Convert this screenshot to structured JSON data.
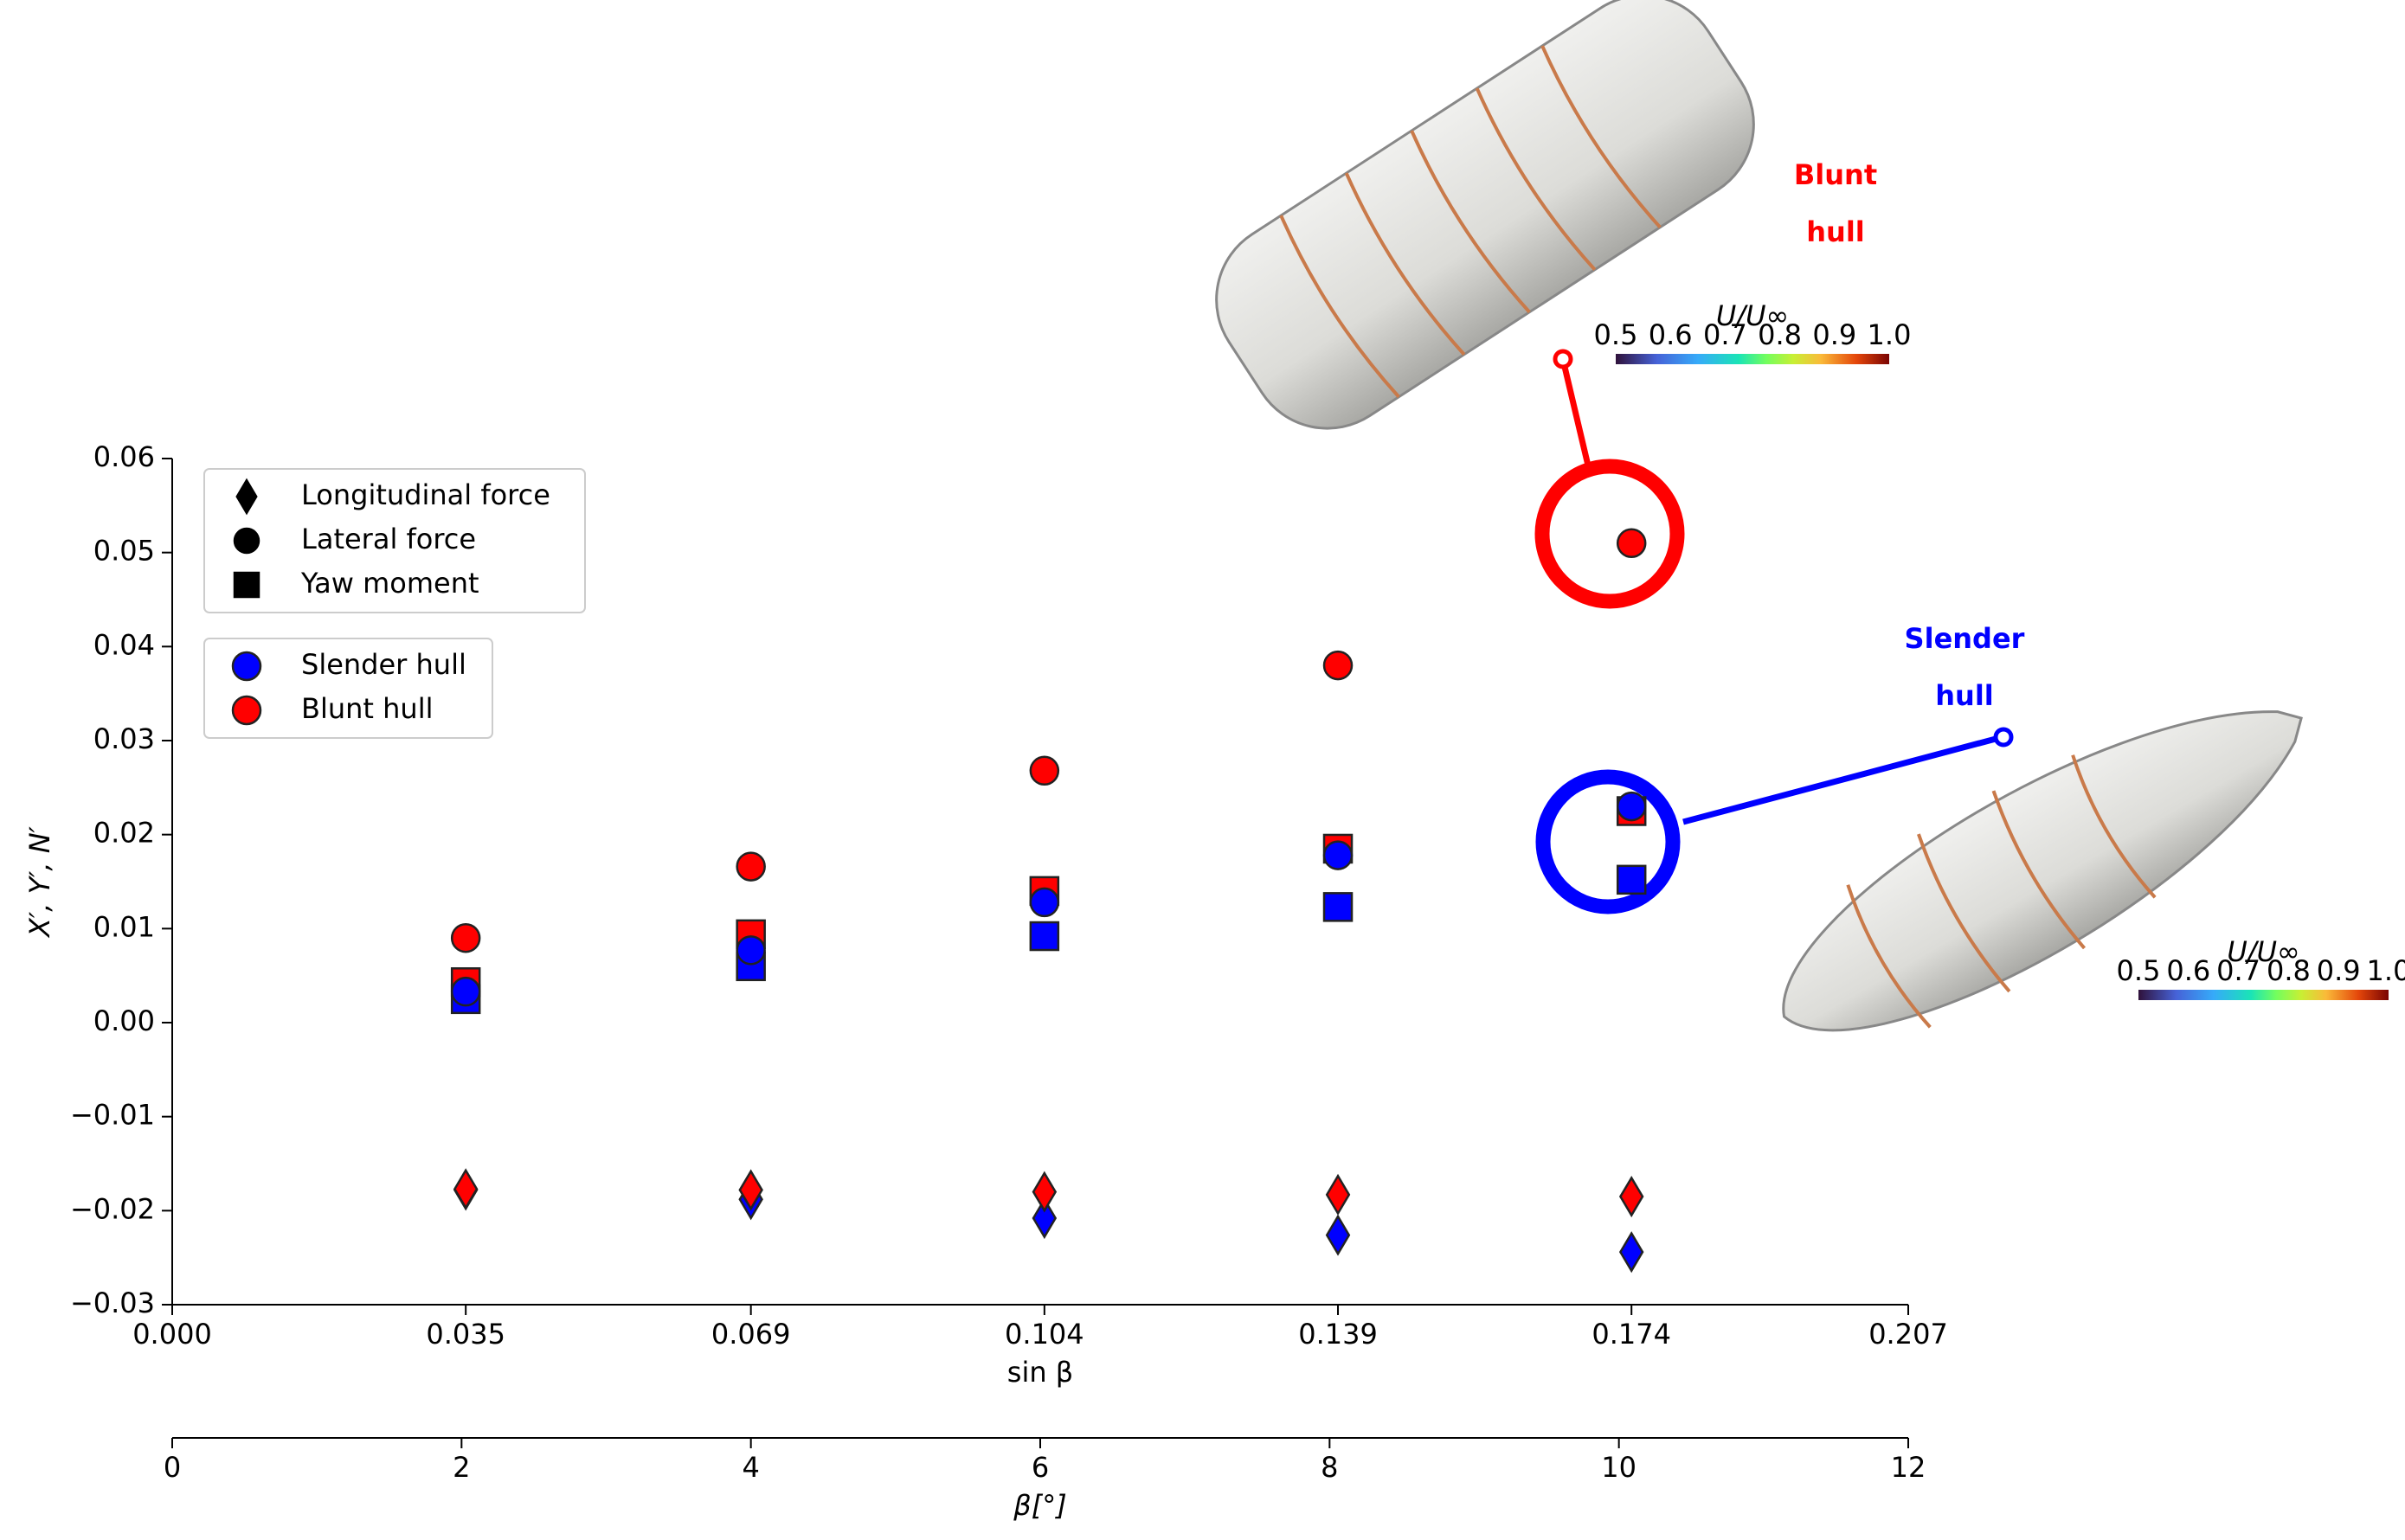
{
  "chart_data": {
    "type": "scatter",
    "xlabel": "sin β",
    "ylabel": "X′, Y′, N′",
    "x": [
      0.035,
      0.069,
      0.104,
      0.139,
      0.174
    ],
    "xlim": [
      0,
      0.207
    ],
    "xticks": [
      {
        "value": 0,
        "label": "0.000"
      },
      0.035,
      0.069,
      0.104,
      0.139,
      0.174,
      0.207
    ],
    "ylim": [
      -0.03,
      0.06
    ],
    "yticks": [
      {
        "value": -0.03,
        "label": "−0.03"
      },
      {
        "value": -0.02,
        "label": "−0.02"
      },
      {
        "value": -0.01,
        "label": "−0.01"
      },
      {
        "value": 0,
        "label": "0.00"
      },
      0.01,
      0.02,
      0.03,
      0.04,
      0.05,
      0.06
    ],
    "x2label": "β[°]",
    "x2lim": [
      0,
      12
    ],
    "x2ticks": [
      0,
      2,
      4,
      6,
      8,
      10,
      12
    ],
    "marker_legend": [
      {
        "name": "Longitudinal force",
        "marker": "diamond"
      },
      {
        "name": "Lateral force",
        "marker": "circle"
      },
      {
        "name": "Yaw moment",
        "marker": "square"
      }
    ],
    "color_legend": [
      {
        "name": "Slender hull",
        "color": "#0000ff"
      },
      {
        "name": "Blunt hull",
        "color": "#ff0000"
      }
    ],
    "series": [
      {
        "marker": "square",
        "color": "#ff0000",
        "values": [
          0.0043,
          0.0094,
          0.014,
          0.0185,
          0.0225
        ]
      },
      {
        "marker": "square",
        "color": "#0000ff",
        "values": [
          0.0025,
          0.006,
          0.0092,
          0.0123,
          0.0152
        ]
      },
      {
        "marker": "circle",
        "color": "#ff0000",
        "values": [
          0.009,
          0.0166,
          0.0268,
          0.038,
          0.051
        ]
      },
      {
        "marker": "circle",
        "color": "#0000ff",
        "values": [
          0.0033,
          0.0077,
          0.0128,
          0.0178,
          0.023
        ]
      },
      {
        "marker": "diamond",
        "color": "#0000ff",
        "values": [
          -0.0178,
          -0.0188,
          -0.0208,
          -0.0226,
          -0.0244
        ]
      },
      {
        "marker": "diamond",
        "color": "#ff0000",
        "values": [
          -0.0177,
          -0.0178,
          -0.018,
          -0.0183,
          -0.0185
        ]
      }
    ],
    "annotations": [
      {
        "lines": [
          "Blunt",
          "hull"
        ],
        "color": "#ff0000"
      },
      {
        "lines": [
          "Slender",
          "hull"
        ],
        "color": "#0000ff"
      }
    ],
    "colorbars": [
      {
        "label": "U/U∞",
        "ticks": [
          0.5,
          0.6,
          0.7,
          0.8,
          0.9,
          {
            "value": 1,
            "label": "1.0"
          }
        ]
      },
      {
        "label": "U/U∞",
        "ticks": [
          0.5,
          0.6,
          0.7,
          0.8,
          0.9,
          {
            "value": 1,
            "label": "1.0"
          }
        ]
      }
    ]
  }
}
